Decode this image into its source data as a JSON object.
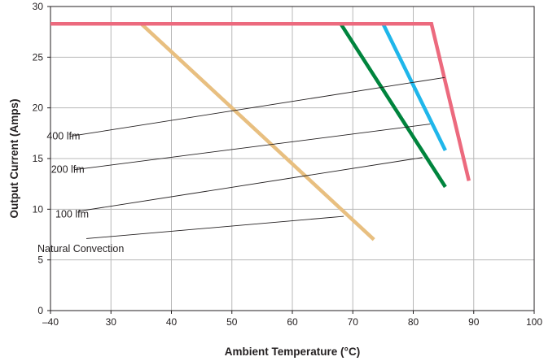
{
  "chart_data": {
    "type": "line",
    "xlabel": "Ambient Temperature (°C)",
    "ylabel": "Output Current (Amps)",
    "xlim": [
      -40,
      100
    ],
    "ylim": [
      0,
      30
    ],
    "x_ticks": [
      -40,
      30,
      40,
      50,
      60,
      70,
      80,
      90,
      100
    ],
    "x_tick_labels": [
      "–40",
      "30",
      "40",
      "50",
      "60",
      "70",
      "80",
      "90",
      "100"
    ],
    "y_ticks": [
      0,
      5,
      10,
      15,
      20,
      25,
      30
    ],
    "y_tick_labels": [
      "0",
      "5",
      "10",
      "15",
      "20",
      "25",
      "30"
    ],
    "grid": true,
    "series": [
      {
        "name": "Natural Convection",
        "color": "#e8bf80",
        "points": [
          [
            -40,
            28.3
          ],
          [
            35,
            28.3
          ],
          [
            73.5,
            7
          ]
        ]
      },
      {
        "name": "100 lfm",
        "color": "#00843d",
        "points": [
          [
            -40,
            28.3
          ],
          [
            68,
            28.3
          ],
          [
            85.3,
            12.2
          ]
        ]
      },
      {
        "name": "200 lfm",
        "color": "#1fb6ea",
        "points": [
          [
            -40,
            28.3
          ],
          [
            75,
            28.3
          ],
          [
            85.3,
            15.8
          ]
        ]
      },
      {
        "name": "400 lfm",
        "color": "#ec6a7e",
        "points": [
          [
            -40,
            28.3
          ],
          [
            83,
            28.3
          ],
          [
            89.2,
            12.8
          ]
        ]
      }
    ],
    "annotations": [
      {
        "text": "400 lfm",
        "series": "400 lfm",
        "label_at": [
          -25,
          17.2
        ],
        "leader_from": [
          -17,
          17.2
        ],
        "leader_to": [
          85.2,
          23
        ]
      },
      {
        "text": "200 lfm",
        "series": "200 lfm",
        "label_at": [
          -20,
          13.9
        ],
        "leader_from": [
          -12,
          13.9
        ],
        "leader_to": [
          82.8,
          18.4
        ]
      },
      {
        "text": "100 lfm",
        "series": "100 lfm",
        "label_at": [
          -15,
          9.5
        ],
        "leader_from": [
          -7.5,
          9.8
        ],
        "leader_to": [
          81.5,
          15.1
        ]
      },
      {
        "text": "Natural Convection",
        "series": "Natural Convection",
        "label_at": [
          -5,
          6.1
        ],
        "leader_from": [
          1.5,
          7.1
        ],
        "leader_to": [
          68.5,
          9.3
        ]
      }
    ]
  }
}
